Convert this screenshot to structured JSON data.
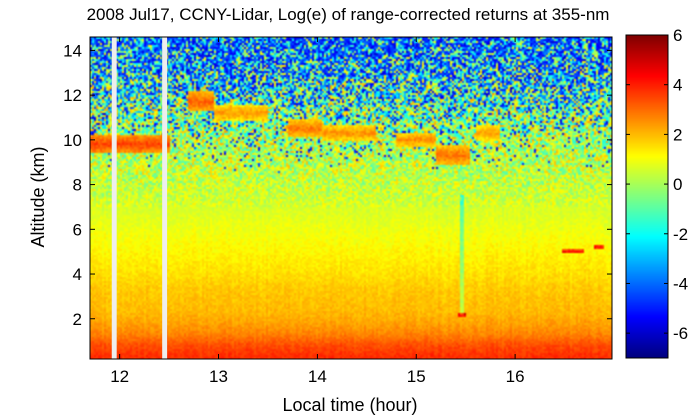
{
  "chart_data": {
    "type": "heatmap",
    "title": "2008 Jul17, CCNY-Lidar, Log(e) of range-corrected returns at 355-nm",
    "xlabel": "Local time (hour)",
    "ylabel": "Altitude (km)",
    "xlim": [
      11.7,
      16.98
    ],
    "ylim": [
      0.2,
      14.6
    ],
    "xticks": [
      12,
      13,
      14,
      15,
      16
    ],
    "xtick_labels": [
      "12",
      "13",
      "14",
      "15",
      "16"
    ],
    "yticks": [
      2,
      4,
      6,
      8,
      10,
      12,
      14
    ],
    "ytick_labels": [
      "2",
      "4",
      "6",
      "8",
      "10",
      "12",
      "14"
    ],
    "colorbar": {
      "colormap": "jet",
      "clim": [
        -7,
        6
      ],
      "ticks": [
        6,
        4,
        2,
        0,
        -2,
        -4,
        -6
      ],
      "tick_labels": [
        "6",
        "4",
        "2",
        "0",
        "-2",
        "-4",
        "-6"
      ]
    },
    "data_gaps": [
      {
        "start": 11.92,
        "end": 11.97
      },
      {
        "start": 12.43,
        "end": 12.48
      }
    ],
    "altitude_profile": {
      "altitude_km": [
        0.3,
        0.8,
        1.3,
        1.8,
        2.3,
        2.8,
        3.3,
        4.0,
        5.0,
        6.0,
        7.0,
        8.0,
        8.8,
        10.0,
        11.0,
        12.0,
        13.0,
        14.6
      ],
      "log_signal": [
        3.8,
        3.4,
        2.7,
        2.3,
        2.0,
        1.9,
        1.8,
        1.5,
        1.2,
        0.9,
        0.6,
        0.35,
        0.3,
        0.1,
        -0.4,
        -1.0,
        -1.6,
        -2.4
      ]
    },
    "features": [
      {
        "name": "cloud",
        "time_start": 11.7,
        "time_end": 12.5,
        "alt_center_km": 9.8,
        "alt_half_width_km": 0.4,
        "value": 3.6
      },
      {
        "name": "cloud",
        "time_start": 12.7,
        "time_end": 12.95,
        "alt_center_km": 11.7,
        "alt_half_width_km": 0.45,
        "value": 3.2
      },
      {
        "name": "cloud",
        "time_start": 12.95,
        "time_end": 13.5,
        "alt_center_km": 11.2,
        "alt_half_width_km": 0.35,
        "value": 2.5
      },
      {
        "name": "cloud",
        "time_start": 13.7,
        "time_end": 14.05,
        "alt_center_km": 10.5,
        "alt_half_width_km": 0.4,
        "value": 2.9
      },
      {
        "name": "cloud",
        "time_start": 14.05,
        "time_end": 14.6,
        "alt_center_km": 10.3,
        "alt_half_width_km": 0.35,
        "value": 2.6
      },
      {
        "name": "cloud",
        "time_start": 14.8,
        "time_end": 15.2,
        "alt_center_km": 10.0,
        "alt_half_width_km": 0.35,
        "value": 2.6
      },
      {
        "name": "cloud",
        "time_start": 15.2,
        "time_end": 15.55,
        "alt_center_km": 9.3,
        "alt_half_width_km": 0.45,
        "value": 3.0
      },
      {
        "name": "cloud",
        "time_start": 15.6,
        "time_end": 15.85,
        "alt_center_km": 10.3,
        "alt_half_width_km": 0.35,
        "value": 2.4
      },
      {
        "name": "low cloud",
        "time_start": 15.43,
        "time_end": 15.5,
        "alt_center_km": 2.2,
        "alt_half_width_km": 0.1,
        "value": 5.0
      },
      {
        "name": "low cloud",
        "time_start": 16.48,
        "time_end": 16.7,
        "alt_center_km": 5.0,
        "alt_half_width_km": 0.1,
        "value": 4.5
      },
      {
        "name": "low cloud",
        "time_start": 16.8,
        "time_end": 16.9,
        "alt_center_km": 5.2,
        "alt_half_width_km": 0.1,
        "value": 4.5
      }
    ]
  }
}
